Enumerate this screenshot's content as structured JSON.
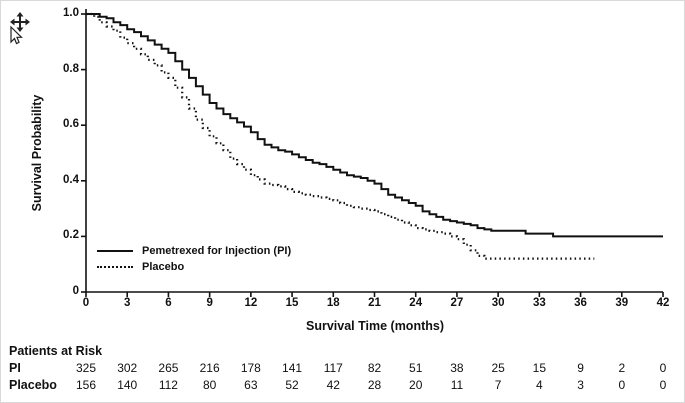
{
  "cursor": {
    "name": "move-cursor"
  },
  "chart_data": {
    "type": "line",
    "subtype": "kaplan-meier-step",
    "title": "",
    "xlabel": "Survival Time (months)",
    "ylabel": "Survival Probability",
    "xlim": [
      0,
      42
    ],
    "ylim": [
      0,
      1.0
    ],
    "xticks": [
      0,
      3,
      6,
      9,
      12,
      15,
      18,
      21,
      24,
      27,
      30,
      33,
      36,
      39,
      42
    ],
    "yticks": [
      1.0,
      0.8,
      0.6,
      0.4,
      0.2,
      0
    ],
    "ytick_labels": [
      "1.0",
      "0.8",
      "0.6",
      "0.4",
      "0.2",
      "0"
    ],
    "grid": false,
    "legend_position": "inside-lower-left",
    "line_color": "#111111",
    "series": [
      {
        "name": "Pemetrexed for Injection (PI)",
        "line_style": "solid",
        "points": [
          [
            0,
            1.0
          ],
          [
            0.8,
            1.0
          ],
          [
            1,
            0.99
          ],
          [
            1.5,
            0.985
          ],
          [
            2,
            0.97
          ],
          [
            2.5,
            0.96
          ],
          [
            3,
            0.945
          ],
          [
            3.5,
            0.935
          ],
          [
            4,
            0.92
          ],
          [
            4.5,
            0.905
          ],
          [
            5,
            0.89
          ],
          [
            5.5,
            0.875
          ],
          [
            6,
            0.86
          ],
          [
            6.5,
            0.83
          ],
          [
            7,
            0.8
          ],
          [
            7.5,
            0.77
          ],
          [
            8,
            0.74
          ],
          [
            8.5,
            0.71
          ],
          [
            9,
            0.68
          ],
          [
            9.5,
            0.66
          ],
          [
            10,
            0.64
          ],
          [
            10.5,
            0.625
          ],
          [
            11,
            0.61
          ],
          [
            11.5,
            0.595
          ],
          [
            12,
            0.575
          ],
          [
            12.5,
            0.55
          ],
          [
            13,
            0.53
          ],
          [
            13.5,
            0.52
          ],
          [
            14,
            0.51
          ],
          [
            14.5,
            0.505
          ],
          [
            15,
            0.495
          ],
          [
            15.5,
            0.485
          ],
          [
            16,
            0.475
          ],
          [
            16.5,
            0.465
          ],
          [
            17,
            0.46
          ],
          [
            17.5,
            0.45
          ],
          [
            18,
            0.44
          ],
          [
            18.5,
            0.43
          ],
          [
            19,
            0.42
          ],
          [
            19.5,
            0.415
          ],
          [
            20,
            0.41
          ],
          [
            20.5,
            0.4
          ],
          [
            21,
            0.39
          ],
          [
            21.5,
            0.37
          ],
          [
            22,
            0.35
          ],
          [
            22.5,
            0.34
          ],
          [
            23,
            0.33
          ],
          [
            23.5,
            0.32
          ],
          [
            24,
            0.31
          ],
          [
            24.5,
            0.29
          ],
          [
            25,
            0.28
          ],
          [
            25.5,
            0.27
          ],
          [
            26,
            0.26
          ],
          [
            26.5,
            0.255
          ],
          [
            27,
            0.25
          ],
          [
            27.5,
            0.245
          ],
          [
            28,
            0.24
          ],
          [
            28.5,
            0.23
          ],
          [
            29,
            0.225
          ],
          [
            29.5,
            0.22
          ],
          [
            31,
            0.22
          ],
          [
            32,
            0.21
          ],
          [
            34,
            0.2
          ],
          [
            42,
            0.2
          ]
        ]
      },
      {
        "name": "Placebo",
        "line_style": "dotted",
        "points": [
          [
            0,
            1.0
          ],
          [
            0.6,
            0.99
          ],
          [
            1,
            0.97
          ],
          [
            1.5,
            0.955
          ],
          [
            2,
            0.94
          ],
          [
            2.5,
            0.915
          ],
          [
            3,
            0.895
          ],
          [
            3.5,
            0.875
          ],
          [
            4,
            0.855
          ],
          [
            4.5,
            0.835
          ],
          [
            5,
            0.815
          ],
          [
            5.5,
            0.79
          ],
          [
            6,
            0.77
          ],
          [
            6.5,
            0.735
          ],
          [
            7,
            0.7
          ],
          [
            7.5,
            0.66
          ],
          [
            8,
            0.62
          ],
          [
            8.5,
            0.59
          ],
          [
            9,
            0.56
          ],
          [
            9.5,
            0.535
          ],
          [
            10,
            0.51
          ],
          [
            10.5,
            0.48
          ],
          [
            11,
            0.46
          ],
          [
            11.5,
            0.44
          ],
          [
            12,
            0.42
          ],
          [
            12.5,
            0.405
          ],
          [
            13,
            0.39
          ],
          [
            13.5,
            0.385
          ],
          [
            14,
            0.38
          ],
          [
            14.5,
            0.37
          ],
          [
            15,
            0.36
          ],
          [
            15.5,
            0.355
          ],
          [
            16,
            0.35
          ],
          [
            16.5,
            0.345
          ],
          [
            17,
            0.34
          ],
          [
            17.5,
            0.335
          ],
          [
            18,
            0.33
          ],
          [
            18.5,
            0.32
          ],
          [
            19,
            0.31
          ],
          [
            19.5,
            0.305
          ],
          [
            20,
            0.3
          ],
          [
            20.5,
            0.295
          ],
          [
            21,
            0.29
          ],
          [
            21.5,
            0.28
          ],
          [
            22,
            0.27
          ],
          [
            22.5,
            0.26
          ],
          [
            23,
            0.25
          ],
          [
            23.5,
            0.24
          ],
          [
            24,
            0.23
          ],
          [
            24.5,
            0.225
          ],
          [
            25,
            0.22
          ],
          [
            25.5,
            0.215
          ],
          [
            26,
            0.21
          ],
          [
            26.5,
            0.2
          ],
          [
            27,
            0.19
          ],
          [
            27.5,
            0.17
          ],
          [
            28,
            0.15
          ],
          [
            28.5,
            0.13
          ],
          [
            29,
            0.12
          ],
          [
            37,
            0.12
          ]
        ]
      }
    ]
  },
  "risk_table": {
    "title": "Patients at Risk",
    "time_points": [
      0,
      3,
      6,
      9,
      12,
      15,
      18,
      21,
      24,
      27,
      30,
      33,
      36,
      39,
      42
    ],
    "rows": [
      {
        "label": "PI",
        "values": [
          "325",
          "302",
          "265",
          "216",
          "178",
          "141",
          "117",
          "82",
          "51",
          "38",
          "25",
          "15",
          "9",
          "2",
          "0"
        ]
      },
      {
        "label": "Placebo",
        "values": [
          "156",
          "140",
          "112",
          "80",
          "63",
          "52",
          "42",
          "28",
          "20",
          "11",
          "7",
          "4",
          "3",
          "0",
          "0"
        ]
      }
    ]
  }
}
